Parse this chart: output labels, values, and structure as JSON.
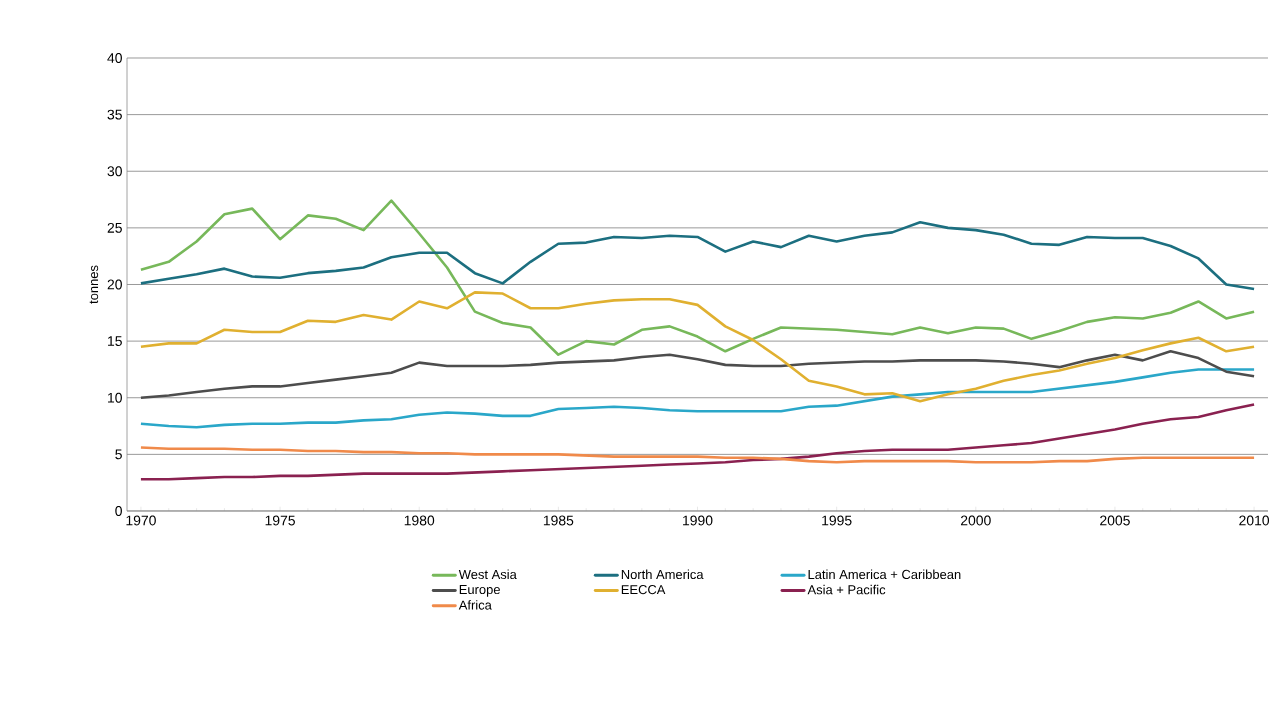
{
  "chart_data": {
    "type": "line",
    "ylabel": "tonnes",
    "x": [
      1970,
      1971,
      1972,
      1973,
      1974,
      1975,
      1976,
      1977,
      1978,
      1979,
      1980,
      1981,
      1982,
      1983,
      1984,
      1985,
      1986,
      1987,
      1988,
      1989,
      1990,
      1991,
      1992,
      1993,
      1994,
      1995,
      1996,
      1997,
      1998,
      1999,
      2000,
      2001,
      2002,
      2003,
      2004,
      2005,
      2006,
      2007,
      2008,
      2009,
      2010
    ],
    "xlim": [
      1969.5,
      2010.5
    ],
    "xticks": [
      1970,
      1975,
      1980,
      1985,
      1990,
      1995,
      2000,
      2005,
      2010
    ],
    "ylim": [
      0,
      40
    ],
    "yticks": [
      0,
      5,
      10,
      15,
      20,
      25,
      30,
      35,
      40
    ],
    "grid": "y",
    "legend": "bottom",
    "marker": "none",
    "line_style": "solid",
    "series": [
      {
        "name": "West Asia",
        "color": "#77b85a",
        "values": [
          21.3,
          22.0,
          23.8,
          26.2,
          26.7,
          24.0,
          26.1,
          25.8,
          24.8,
          27.4,
          24.5,
          21.5,
          17.6,
          16.6,
          16.2,
          13.8,
          15.0,
          14.7,
          16.0,
          16.3,
          15.4,
          14.1,
          15.2,
          16.2,
          16.1,
          16.0,
          15.8,
          15.6,
          16.2,
          15.7,
          16.2,
          16.1,
          15.2,
          15.9,
          16.7,
          17.1,
          17.0,
          17.5,
          18.5,
          17.0,
          17.6
        ]
      },
      {
        "name": "North America",
        "color": "#1c6f80",
        "values": [
          20.1,
          20.5,
          20.9,
          21.4,
          20.7,
          20.6,
          21.0,
          21.2,
          21.5,
          22.4,
          22.8,
          22.8,
          21.0,
          20.1,
          22.0,
          23.6,
          23.7,
          24.2,
          24.1,
          24.3,
          24.2,
          22.9,
          23.8,
          23.3,
          24.3,
          23.8,
          24.3,
          24.6,
          25.5,
          25.0,
          24.8,
          24.4,
          23.6,
          23.5,
          24.2,
          24.1,
          24.1,
          23.4,
          22.3,
          20.0,
          19.6
        ]
      },
      {
        "name": "Latin America + Caribbean",
        "color": "#2aa7c9",
        "values": [
          7.7,
          7.5,
          7.4,
          7.6,
          7.7,
          7.7,
          7.8,
          7.8,
          8.0,
          8.1,
          8.5,
          8.7,
          8.6,
          8.4,
          8.4,
          9.0,
          9.1,
          9.2,
          9.1,
          8.9,
          8.8,
          8.8,
          8.8,
          8.8,
          9.2,
          9.3,
          9.7,
          10.1,
          10.3,
          10.5,
          10.5,
          10.5,
          10.5,
          10.8,
          11.1,
          11.4,
          11.8,
          12.2,
          12.5,
          12.5,
          12.5
        ]
      },
      {
        "name": "Europe",
        "color": "#4d4d4d",
        "values": [
          10.0,
          10.2,
          10.5,
          10.8,
          11.0,
          11.0,
          11.3,
          11.6,
          11.9,
          12.2,
          13.1,
          12.8,
          12.8,
          12.8,
          12.9,
          13.1,
          13.2,
          13.3,
          13.6,
          13.8,
          13.4,
          12.9,
          12.8,
          12.8,
          13.0,
          13.1,
          13.2,
          13.2,
          13.3,
          13.3,
          13.3,
          13.2,
          13.0,
          12.7,
          13.3,
          13.8,
          13.3,
          14.1,
          13.5,
          12.3,
          11.9
        ]
      },
      {
        "name": "EECCA",
        "color": "#e0b030",
        "values": [
          14.5,
          14.8,
          14.8,
          16.0,
          15.8,
          15.8,
          16.8,
          16.7,
          17.3,
          16.9,
          18.5,
          17.9,
          19.3,
          19.2,
          17.9,
          17.9,
          18.3,
          18.6,
          18.7,
          18.7,
          18.2,
          16.3,
          15.1,
          13.4,
          11.5,
          11.0,
          10.3,
          10.4,
          9.7,
          10.3,
          10.8,
          11.5,
          12.0,
          12.4,
          13.0,
          13.5,
          14.2,
          14.8,
          15.3,
          14.1,
          14.5
        ]
      },
      {
        "name": "Asia + Pacific",
        "color": "#8a2150",
        "values": [
          2.8,
          2.8,
          2.9,
          3.0,
          3.0,
          3.1,
          3.1,
          3.2,
          3.3,
          3.3,
          3.3,
          3.3,
          3.4,
          3.5,
          3.6,
          3.7,
          3.8,
          3.9,
          4.0,
          4.1,
          4.2,
          4.3,
          4.5,
          4.6,
          4.8,
          5.1,
          5.3,
          5.4,
          5.4,
          5.4,
          5.6,
          5.8,
          6.0,
          6.4,
          6.8,
          7.2,
          7.7,
          8.1,
          8.3,
          8.9,
          9.4
        ]
      },
      {
        "name": "Africa",
        "color": "#f08a4a",
        "values": [
          5.6,
          5.5,
          5.5,
          5.5,
          5.4,
          5.4,
          5.3,
          5.3,
          5.2,
          5.2,
          5.1,
          5.1,
          5.0,
          5.0,
          5.0,
          5.0,
          4.9,
          4.8,
          4.8,
          4.8,
          4.8,
          4.7,
          4.7,
          4.6,
          4.4,
          4.3,
          4.4,
          4.4,
          4.4,
          4.4,
          4.3,
          4.3,
          4.3,
          4.4,
          4.4,
          4.6,
          4.7,
          4.7,
          4.7,
          4.7,
          4.7
        ]
      }
    ]
  }
}
